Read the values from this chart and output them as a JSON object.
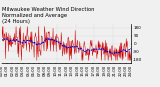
{
  "title": "Milwaukee Weather Wind Direction\nNormalized and Average\n(24 Hours)",
  "title_fontsize": 3.8,
  "bg_color": "#f0f0f0",
  "plot_bg_color": "#f0f0f0",
  "grid_color": "#aaaaaa",
  "line_color": "#cc0000",
  "avg_color": "#0000cc",
  "n_points": 288,
  "ylim": [
    -220,
    220
  ],
  "yticks": [
    -180,
    -90,
    0,
    90,
    180
  ],
  "ytick_labels": [
    "-180",
    "-90",
    "0",
    "90",
    "180"
  ],
  "ylabel_fontsize": 3.0,
  "xlabel_fontsize": 2.8,
  "avg_linewidth": 0.7,
  "data_linewidth": 0.35,
  "avg_window": 20,
  "seed": 99
}
